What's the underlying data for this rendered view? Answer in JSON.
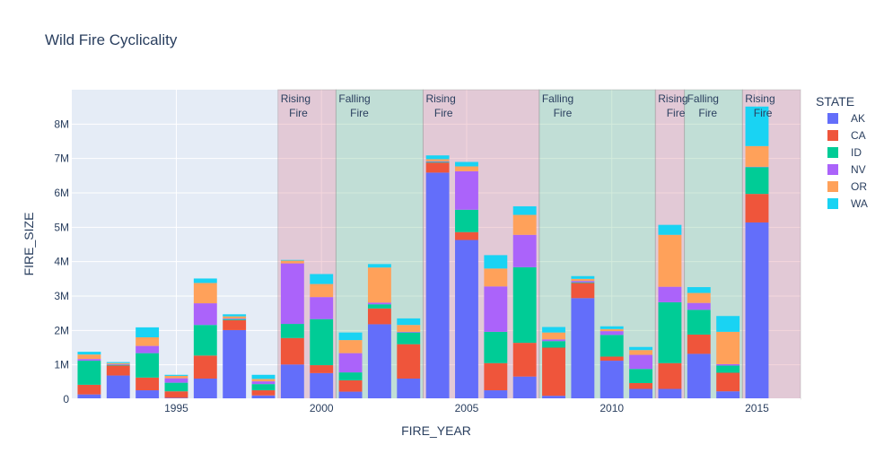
{
  "chart_data": {
    "type": "bar",
    "stacked": true,
    "title": "Wild Fire Cyclicality",
    "xlabel": "FIRE_YEAR",
    "ylabel": "FIRE_SIZE",
    "x_ticks": [
      1995,
      2000,
      2005,
      2010,
      2015
    ],
    "y_ticks": [
      {
        "value": 0,
        "label": "0"
      },
      {
        "value": 1000000,
        "label": "1M"
      },
      {
        "value": 2000000,
        "label": "2M"
      },
      {
        "value": 3000000,
        "label": "3M"
      },
      {
        "value": 4000000,
        "label": "4M"
      },
      {
        "value": 5000000,
        "label": "5M"
      },
      {
        "value": 6000000,
        "label": "6M"
      },
      {
        "value": 7000000,
        "label": "7M"
      },
      {
        "value": 8000000,
        "label": "8M"
      }
    ],
    "xlim": [
      1991.4,
      2016.5
    ],
    "ylim": [
      0,
      9000000
    ],
    "legend_title": "STATE",
    "legend_position": "right",
    "grid": true,
    "years": [
      1992,
      1993,
      1994,
      1995,
      1996,
      1997,
      1998,
      1999,
      2000,
      2001,
      2002,
      2003,
      2004,
      2005,
      2006,
      2007,
      2008,
      2009,
      2010,
      2011,
      2012,
      2013,
      2014,
      2015
    ],
    "series": [
      {
        "name": "AK",
        "color": "#636efa",
        "values": [
          140000,
          690000,
          260000,
          40000,
          600000,
          2010000,
          110000,
          1010000,
          760000,
          220000,
          2180000,
          600000,
          6590000,
          4630000,
          260000,
          660000,
          100000,
          2940000,
          1120000,
          300000,
          300000,
          1320000,
          230000,
          5140000
        ]
      },
      {
        "name": "CA",
        "color": "#ef553b",
        "values": [
          280000,
          290000,
          370000,
          190000,
          670000,
          290000,
          150000,
          770000,
          230000,
          330000,
          460000,
          1000000,
          290000,
          230000,
          790000,
          980000,
          1400000,
          440000,
          120000,
          170000,
          750000,
          560000,
          540000,
          830000
        ]
      },
      {
        "name": "ID",
        "color": "#00cc96",
        "values": [
          700000,
          20000,
          710000,
          250000,
          890000,
          30000,
          180000,
          410000,
          1340000,
          230000,
          120000,
          340000,
          20000,
          650000,
          910000,
          2200000,
          190000,
          20000,
          630000,
          410000,
          1770000,
          720000,
          210000,
          780000
        ]
      },
      {
        "name": "NV",
        "color": "#ab63fa",
        "values": [
          50000,
          20000,
          210000,
          130000,
          630000,
          20000,
          80000,
          1760000,
          640000,
          560000,
          50000,
          20000,
          20000,
          1120000,
          1320000,
          940000,
          50000,
          40000,
          110000,
          410000,
          450000,
          200000,
          40000,
          10000
        ]
      },
      {
        "name": "OR",
        "color": "#ffa15a",
        "values": [
          130000,
          30000,
          250000,
          70000,
          590000,
          60000,
          70000,
          80000,
          380000,
          380000,
          1020000,
          200000,
          60000,
          140000,
          520000,
          580000,
          200000,
          60000,
          60000,
          140000,
          1510000,
          290000,
          940000,
          600000
        ]
      },
      {
        "name": "WA",
        "color": "#19d3f3",
        "values": [
          80000,
          30000,
          290000,
          30000,
          130000,
          60000,
          120000,
          20000,
          290000,
          220000,
          100000,
          190000,
          110000,
          130000,
          390000,
          250000,
          160000,
          80000,
          80000,
          90000,
          290000,
          170000,
          460000,
          1150000
        ]
      }
    ],
    "phases": [
      {
        "start": 1998.5,
        "end": 2000.5,
        "label1": "Rising",
        "label2": "Fire",
        "kind": "rising",
        "fill": "rgba(220,120,140,0.30)"
      },
      {
        "start": 2000.5,
        "end": 2003.5,
        "label1": "Falling",
        "label2": "Fire",
        "kind": "falling",
        "fill": "rgba(110,190,140,0.30)"
      },
      {
        "start": 2003.5,
        "end": 2007.5,
        "label1": "Rising",
        "label2": "Fire",
        "kind": "rising",
        "fill": "rgba(220,120,140,0.30)"
      },
      {
        "start": 2007.5,
        "end": 2011.5,
        "label1": "Falling",
        "label2": "Fire",
        "kind": "falling",
        "fill": "rgba(110,190,140,0.30)"
      },
      {
        "start": 2011.5,
        "end": 2012.5,
        "label1": "Rising",
        "label2": "Fire",
        "kind": "rising",
        "fill": "rgba(220,120,140,0.30)"
      },
      {
        "start": 2012.5,
        "end": 2014.5,
        "label1": "Falling",
        "label2": "Fire",
        "kind": "falling",
        "fill": "rgba(110,190,140,0.30)"
      },
      {
        "start": 2014.5,
        "end": 2016.5,
        "label1": "Rising",
        "label2": "Fire",
        "kind": "rising",
        "fill": "rgba(220,120,140,0.30)"
      }
    ],
    "plot_background": "#e5ecf6",
    "gridline_color": "#ffffff"
  }
}
